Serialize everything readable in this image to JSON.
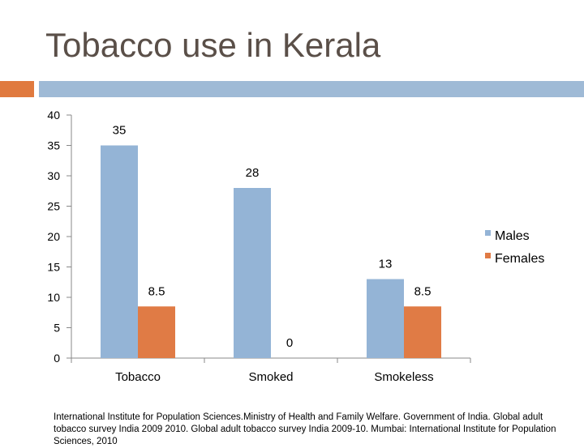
{
  "slide": {
    "title": "Tobacco use in Kerala",
    "source": "International Institute for Population Sciences.Ministry of Health and Family Welfare. Government of India. Global adult tobacco survey India 2009 2010. Global adult tobacco survey India 2009-10. Mumbai: International Institute for Population Sciences, 2010"
  },
  "colors": {
    "males": "#94b4d6",
    "females": "#e07b45",
    "accent_left": "#e07a3f",
    "accent_right": "#9fbad6",
    "axis": "#888888"
  },
  "chart_data": {
    "type": "bar",
    "title": "",
    "xlabel": "",
    "ylabel": "",
    "categories": [
      "Tobacco",
      "Smoked",
      "Smokeless"
    ],
    "series": [
      {
        "name": "Males",
        "values": [
          35,
          28,
          13
        ]
      },
      {
        "name": "Females",
        "values": [
          8.5,
          0,
          8.5
        ]
      }
    ],
    "ylim": [
      0,
      40
    ],
    "yticks": [
      0,
      5,
      10,
      15,
      20,
      25,
      30,
      35,
      40
    ],
    "grid": false,
    "legend": "right",
    "data_labels": true
  }
}
